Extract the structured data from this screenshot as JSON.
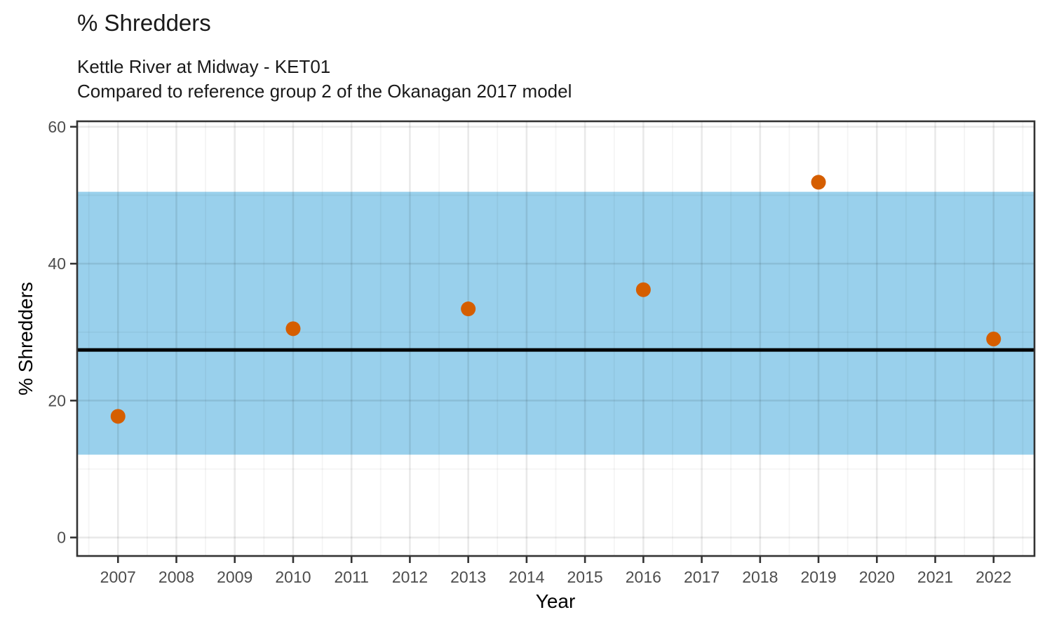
{
  "title": "% Shredders",
  "subtitle_lines": [
    "Kettle River at Midway - KET01",
    "Compared to reference group 2 of the Okanagan 2017 model"
  ],
  "chart_data": {
    "type": "scatter",
    "title": "% Shredders",
    "subtitle_lines": [
      "Kettle River at Midway - KET01",
      "Compared to reference group 2 of the Okanagan 2017 model"
    ],
    "xlabel": "Year",
    "ylabel": "% Shredders",
    "x_ticks": [
      2007,
      2008,
      2009,
      2010,
      2011,
      2012,
      2013,
      2014,
      2015,
      2016,
      2017,
      2018,
      2019,
      2020,
      2021,
      2022
    ],
    "y_ticks": [
      0,
      20,
      40,
      60
    ],
    "xlim": [
      2006.3,
      2022.7
    ],
    "ylim": [
      -2.7,
      60.8
    ],
    "grid": {
      "major": true,
      "minor": true
    },
    "legend": "none",
    "reference_band": {
      "name": "reference range (group 2, Okanagan 2017 model)",
      "lower": 12.1,
      "upper": 50.5,
      "color": "#99D0EC"
    },
    "reference_line": {
      "name": "reference mean",
      "value": 27.4,
      "color": "#000000"
    },
    "series": [
      {
        "name": "% Shredders",
        "type": "scatter",
        "color": "#D55E00",
        "x": [
          2007,
          2010,
          2013,
          2016,
          2019,
          2022
        ],
        "y": [
          17.7,
          30.5,
          33.4,
          36.2,
          51.9,
          29.0
        ]
      }
    ]
  },
  "colors": {
    "point": "#D55E00",
    "band": "#99D0EC",
    "reference_line": "#000000",
    "panel_border": "#333333",
    "tick_mark": "#333333",
    "tick_label": "#4d4d4d",
    "grid_major": "rgba(0,0,0,0.085)",
    "grid_minor": "rgba(0,0,0,0.045)",
    "background": "#ffffff"
  }
}
